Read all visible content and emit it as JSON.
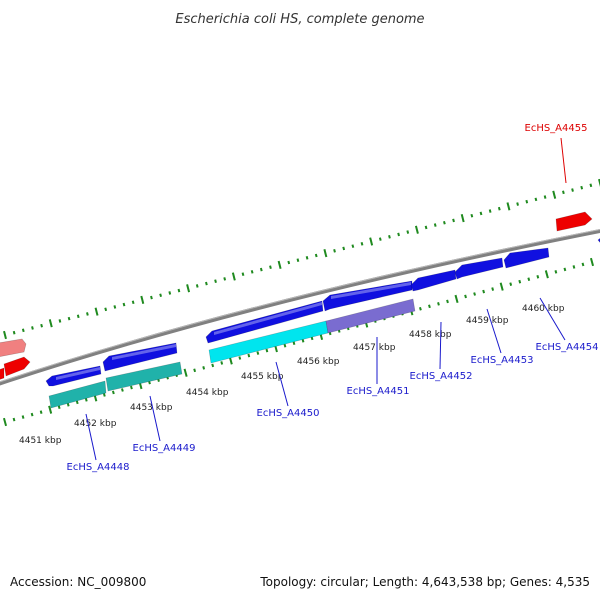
{
  "title": "Escherichia coli HS, complete genome",
  "footer": {
    "accession": "Accession: NC_009800",
    "topology": "Topology: circular; Length: 4,643,538 bp; Genes: 4,535"
  },
  "colors": {
    "backbone": "#808080",
    "tick": "#1f8a1f",
    "forward": "#1010e0",
    "forward_light": "#00e5ee",
    "forward_mid": "#7a6cd0",
    "reverse": "#ee0000",
    "reverse_light": "#f08080",
    "teal": "#20b2aa",
    "label_blue": "#1a1acc",
    "label_red": "#dd0000"
  },
  "kbp_labels": [
    "4451 kbp",
    "4452 kbp",
    "4453 kbp",
    "4454 kbp",
    "4455 kbp",
    "4456 kbp",
    "4457 kbp",
    "4458 kbp",
    "4459 kbp",
    "4460 kbp"
  ],
  "genes": [
    {
      "id": "EcHS_A4448",
      "color": "label_blue"
    },
    {
      "id": "EcHS_A4449",
      "color": "label_blue"
    },
    {
      "id": "EcHS_A4450",
      "color": "label_blue"
    },
    {
      "id": "EcHS_A4451",
      "color": "label_blue"
    },
    {
      "id": "EcHS_A4452",
      "color": "label_blue"
    },
    {
      "id": "EcHS_A4453",
      "color": "label_blue"
    },
    {
      "id": "EcHS_A4454",
      "color": "label_blue"
    },
    {
      "id": "EcHS_A4455",
      "color": "label_red"
    }
  ]
}
